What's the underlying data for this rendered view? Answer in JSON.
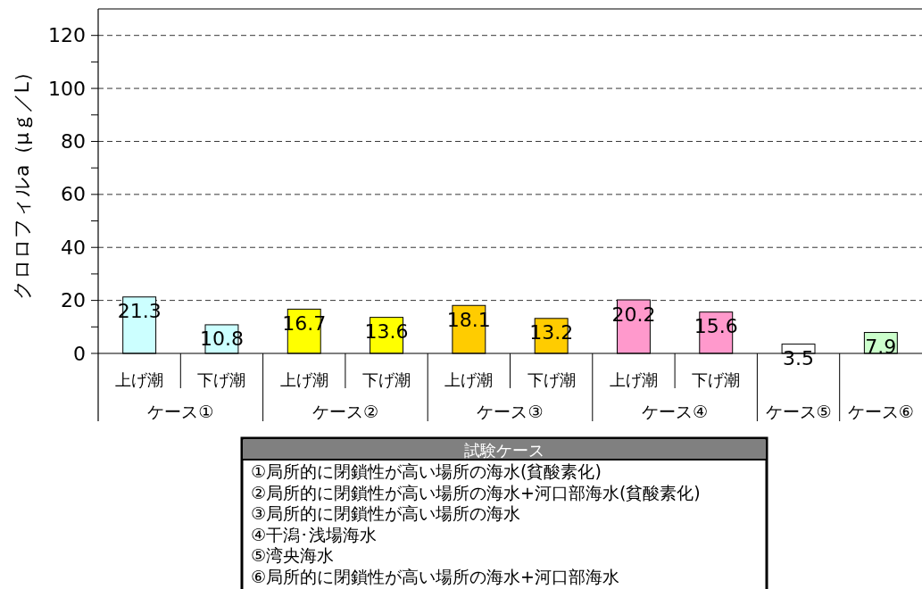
{
  "chart_data": {
    "type": "bar",
    "ylabel": "クロロフィルa（μｇ／L）",
    "categories": [
      "上げ潮",
      "下げ潮",
      "上げ潮",
      "下げ潮",
      "上げ潮",
      "下げ潮",
      "上げ潮",
      "下げ潮",
      null,
      null
    ],
    "values": [
      21.3,
      10.8,
      16.7,
      13.6,
      18.1,
      13.2,
      20.2,
      15.6,
      3.5,
      7.9
    ],
    "colors": [
      "#ccffff",
      "#ccffff",
      "#ffff00",
      "#ffff00",
      "#ffcc00",
      "#ffcc00",
      "#ff99cc",
      "#ff99cc",
      "#ffffff",
      "#ccffcc"
    ],
    "data_labels": true,
    "ylim": [
      0,
      130
    ],
    "yticks": [
      0,
      {
        "value": 10,
        "label": null
      },
      20,
      {
        "value": 30,
        "label": null
      },
      40,
      {
        "value": 50,
        "label": null
      },
      60,
      {
        "value": 70,
        "label": null
      },
      80,
      {
        "value": 90,
        "label": null
      },
      100,
      {
        "value": 110,
        "label": null
      },
      120
    ],
    "grid": "y",
    "legend_title": "試験ケース",
    "annotations": [
      "ケース①",
      "ケース②",
      "ケース③",
      "ケース④",
      "ケース⑤",
      "ケース⑥",
      "①局所的に閉鎖性が高い場所の海水(貧酸素化)",
      "②局所的に閉鎖性が高い場所の海水+河口部海水(貧酸素化)",
      "③局所的に閉鎖性が高い場所の海水",
      "④干潟･浅場海水",
      "⑤湾央海水",
      "⑥局所的に閉鎖性が高い場所の海水+河口部海水"
    ]
  }
}
